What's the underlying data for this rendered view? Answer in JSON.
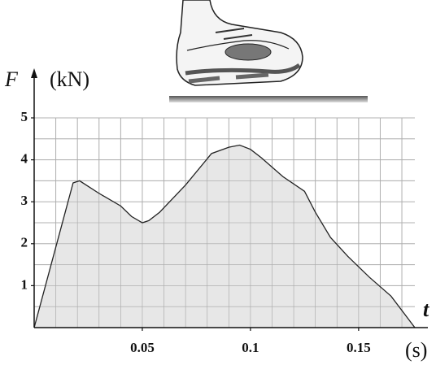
{
  "chart_data": {
    "type": "area",
    "y_label": "F",
    "y_unit": "(kN)",
    "x_label": "t",
    "x_unit": "(s)",
    "x": [
      0,
      0.018,
      0.021,
      0.03,
      0.04,
      0.045,
      0.05,
      0.053,
      0.058,
      0.07,
      0.082,
      0.09,
      0.095,
      0.1,
      0.105,
      0.115,
      0.125,
      0.13,
      0.137,
      0.145,
      0.155,
      0.165,
      0.176
    ],
    "values": [
      0,
      3.45,
      3.5,
      3.2,
      2.9,
      2.65,
      2.5,
      2.55,
      2.75,
      3.4,
      4.15,
      4.3,
      4.35,
      4.25,
      4.05,
      3.6,
      3.25,
      2.75,
      2.15,
      1.7,
      1.2,
      0.75,
      0
    ],
    "color": "#e3e3e3",
    "line_color": "#222222",
    "xlim": [
      0,
      0.176
    ],
    "ylim": [
      0,
      5
    ],
    "xticks": [
      0.05,
      0.1,
      0.15
    ],
    "yticks": [
      1,
      2,
      3,
      4,
      5
    ],
    "grid": true
  }
}
